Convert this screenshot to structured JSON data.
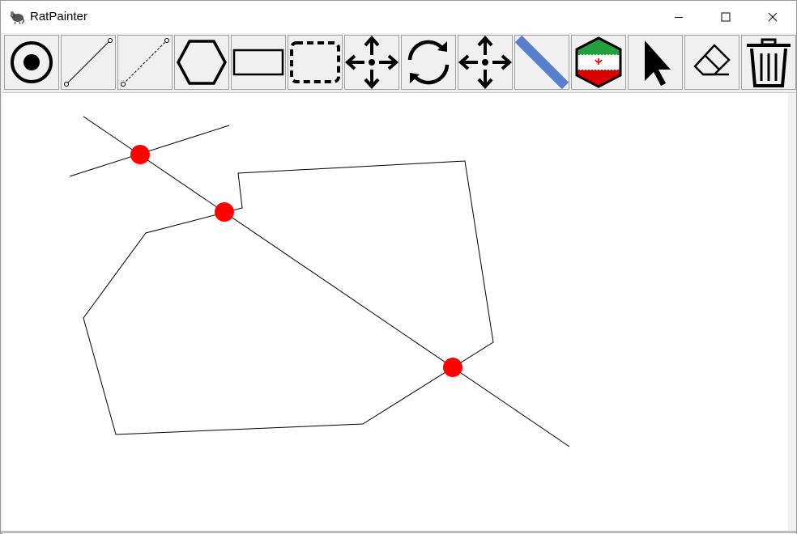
{
  "window": {
    "title": "RatPainter",
    "app_icon": "rat-icon",
    "controls": [
      "minimize-icon",
      "maximize-icon",
      "close-icon"
    ]
  },
  "toolbar": {
    "tools": [
      {
        "name": "point-tool",
        "icon": "point-icon"
      },
      {
        "name": "line-tool",
        "icon": "line-icon"
      },
      {
        "name": "dashed-line-tool",
        "icon": "dashed-line-icon"
      },
      {
        "name": "polygon-tool",
        "icon": "hexagon-icon"
      },
      {
        "name": "rectangle-tool",
        "icon": "rectangle-icon"
      },
      {
        "name": "dashed-rectangle-tool",
        "icon": "dashed-rectangle-icon"
      },
      {
        "name": "move-tool",
        "icon": "move-arrows-icon"
      },
      {
        "name": "rotate-tool",
        "icon": "rotate-icon"
      },
      {
        "name": "move-point-tool",
        "icon": "move-arrows-icon"
      },
      {
        "name": "thick-line-tool",
        "icon": "thick-line-icon"
      },
      {
        "name": "flag-fill-tool",
        "icon": "iran-flag-hexagon-icon"
      },
      {
        "name": "select-tool",
        "icon": "cursor-arrow-icon"
      },
      {
        "name": "eraser-tool",
        "icon": "eraser-icon"
      },
      {
        "name": "clear-all-tool",
        "icon": "trash-icon"
      }
    ]
  },
  "canvas": {
    "background": "#ffffff",
    "stroke_color": "#000000",
    "intersection_color": "#ff0000",
    "shapes": [
      "line",
      "line",
      "polygon"
    ],
    "intersection_points": 3
  }
}
